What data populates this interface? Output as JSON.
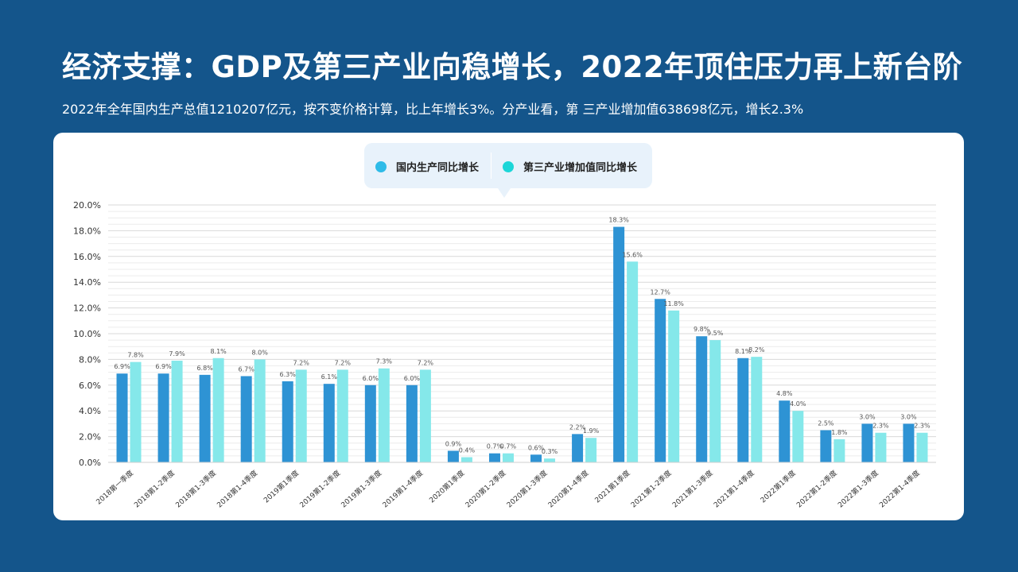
{
  "header": {
    "title": "经济支撑：GDP及第三产业向稳增长，2022年顶住压力再上新台阶",
    "subtitle": "2022年全年国内生产总值1210207亿元，按不变价格计算，比上年增长3%。分产业看，第 三产业增加值638698亿元，增长2.3%"
  },
  "chart_data": {
    "type": "bar",
    "categories": [
      "2018第一季度",
      "2018第1-2季度",
      "2018第1-3季度",
      "2018第1-4季度",
      "2019第1季度",
      "2019第1-2季度",
      "2019第1-3季度",
      "2019第1-4季度",
      "2020第1季度",
      "2020第1-2季度",
      "2020第1-3季度",
      "2020第1-4季度",
      "2021第1季度",
      "2021第1-2季度",
      "2021第1-3季度",
      "2021第1-4季度",
      "2022第1季度",
      "2022第1-2季度",
      "2022第1-3季度",
      "2022第1-4季度"
    ],
    "series": [
      {
        "name": "国内生产同比增长",
        "color": "#2e93d4",
        "values": [
          6.9,
          6.9,
          6.8,
          6.7,
          6.3,
          6.1,
          6.0,
          6.0,
          0.9,
          0.7,
          0.6,
          2.2,
          18.3,
          12.7,
          9.8,
          8.1,
          4.8,
          2.5,
          3.0,
          3.0
        ],
        "labels": [
          "6.9%",
          "6.9%",
          "6.8%",
          "6.7%",
          "6.3%",
          "6.1%",
          "6.0%",
          "6.0%",
          "0.9%",
          "0.7%",
          "0.6%",
          "2.2%",
          "18.3%",
          "12.7%",
          "9.8%",
          "8.1%",
          "4.8%",
          "2.5%",
          "3.0%",
          "3.0%"
        ]
      },
      {
        "name": "第三产业增加值同比增长",
        "color": "#85e8ea",
        "values": [
          7.8,
          7.9,
          8.1,
          8.0,
          7.2,
          7.2,
          7.3,
          7.2,
          0.4,
          0.7,
          0.3,
          1.9,
          15.6,
          11.8,
          9.5,
          8.2,
          4.0,
          1.8,
          2.3,
          2.3
        ],
        "labels": [
          "7.8%",
          "7.9%",
          "8.1%",
          "8.0%",
          "7.2%",
          "7.2%",
          "7.3%",
          "7.2%",
          "0.4%",
          "0.7%",
          "0.3%",
          "1.9%",
          "15.6%",
          "11.8%",
          "9.5%",
          "8.2%",
          "4.0%",
          "1.8%",
          "2.3%",
          "2.3%"
        ]
      }
    ],
    "ylim": [
      0,
      20
    ],
    "yticks": [
      "0.0%",
      "2.0%",
      "4.0%",
      "6.0%",
      "8.0%",
      "10.0%",
      "12.0%",
      "14.0%",
      "16.0%",
      "18.0%",
      "20.0%"
    ],
    "grid": true,
    "legend": {
      "position": "top-center",
      "items": [
        {
          "label": "国内生产同比增长",
          "dot_color": "#2ebbe8"
        },
        {
          "label": "第三产业增加值同比增长",
          "dot_color": "#1cd6d8"
        }
      ]
    }
  }
}
